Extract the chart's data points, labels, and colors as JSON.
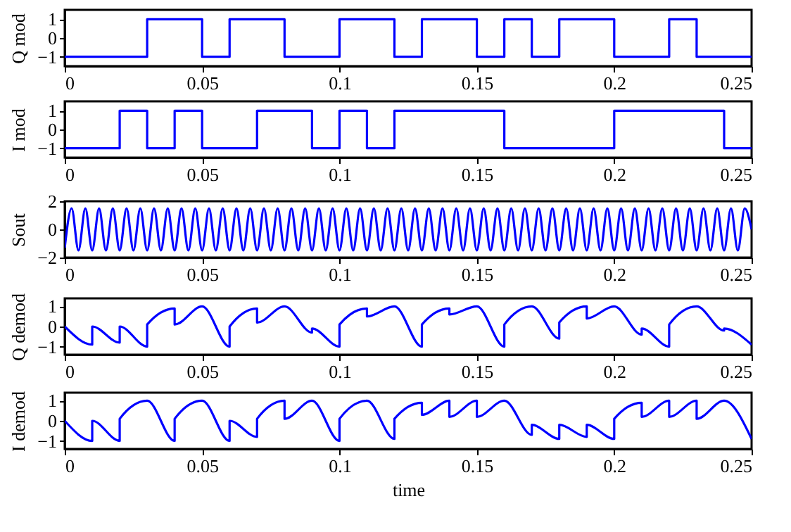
{
  "chart_data": [
    {
      "type": "step",
      "ylabel": "Q mod",
      "color": "#0000ff",
      "xlim": [
        0,
        0.25
      ],
      "xticks": [
        0,
        0.05,
        0.1,
        0.15,
        0.2,
        0.25
      ],
      "ylim": [
        -1.5,
        1.5
      ],
      "yticks": [
        -1,
        0,
        1
      ],
      "x": [
        0,
        0.01,
        0.02,
        0.03,
        0.04,
        0.05,
        0.06,
        0.07,
        0.08,
        0.09,
        0.1,
        0.11,
        0.12,
        0.13,
        0.14,
        0.15,
        0.16,
        0.17,
        0.18,
        0.19,
        0.2,
        0.21,
        0.22,
        0.23,
        0.24,
        0.25
      ],
      "values": [
        -1,
        -1,
        -1,
        1,
        1,
        -1,
        1,
        1,
        -1,
        -1,
        1,
        1,
        -1,
        1,
        1,
        -1,
        1,
        -1,
        1,
        1,
        -1,
        -1,
        1,
        -1,
        -1,
        -1
      ]
    },
    {
      "type": "step",
      "ylabel": "I mod",
      "color": "#0000ff",
      "xlim": [
        0,
        0.25
      ],
      "xticks": [
        0,
        0.05,
        0.1,
        0.15,
        0.2,
        0.25
      ],
      "ylim": [
        -1.5,
        1.5
      ],
      "yticks": [
        -1,
        0,
        1
      ],
      "x": [
        0,
        0.01,
        0.02,
        0.03,
        0.04,
        0.05,
        0.06,
        0.07,
        0.08,
        0.09,
        0.1,
        0.11,
        0.12,
        0.13,
        0.14,
        0.15,
        0.16,
        0.17,
        0.18,
        0.19,
        0.2,
        0.21,
        0.22,
        0.23,
        0.24,
        0.25
      ],
      "values": [
        -1,
        -1,
        1,
        -1,
        1,
        -1,
        -1,
        1,
        1,
        -1,
        1,
        -1,
        1,
        1,
        1,
        1,
        -1,
        -1,
        -1,
        -1,
        1,
        1,
        1,
        1,
        -1,
        -1
      ]
    },
    {
      "type": "line",
      "ylabel": "Sout",
      "color": "#0000ff",
      "xlim": [
        0,
        0.25
      ],
      "xticks": [
        0,
        0.05,
        0.1,
        0.15,
        0.2,
        0.25
      ],
      "ylim": [
        -2,
        2
      ],
      "yticks": [
        -2,
        0,
        2
      ],
      "x": [
        0,
        0.0025,
        0.005,
        0.0075,
        0.01,
        0.0125,
        0.015,
        0.0175,
        0.02,
        0.0225,
        0.025,
        0.0275,
        0.03,
        0.0325,
        0.035,
        0.0375,
        0.04,
        0.0425,
        0.045,
        0.0475,
        0.05,
        0.0525,
        0.055,
        0.0575,
        0.06,
        0.0625,
        0.065,
        0.0675,
        0.07,
        0.0725,
        0.075,
        0.0775,
        0.08,
        0.0825,
        0.085,
        0.0875,
        0.09,
        0.0925,
        0.095,
        0.0975,
        0.1,
        0.1025,
        0.105,
        0.1075,
        0.11,
        0.1125,
        0.115,
        0.1175,
        0.12,
        0.1225,
        0.125,
        0.1275,
        0.13,
        0.1325,
        0.135,
        0.1375,
        0.14,
        0.1425,
        0.145,
        0.1475,
        0.15,
        0.1525,
        0.155,
        0.1575,
        0.16,
        0.1625,
        0.165,
        0.1675,
        0.17,
        0.1725,
        0.175,
        0.1775,
        0.18,
        0.1825,
        0.185,
        0.1875,
        0.19,
        0.1925,
        0.195,
        0.1975,
        0.2,
        0.2025,
        0.205,
        0.2075,
        0.21,
        0.2125,
        0.215,
        0.2175,
        0.22,
        0.2225,
        0.225,
        0.2275,
        0.23,
        0.2325,
        0.235,
        0.2375,
        0.24,
        0.2425,
        0.245,
        0.2475,
        0.25
      ],
      "values": [
        -1.3,
        1.5,
        -1.5,
        1.5,
        -1.5,
        1.5,
        -1.5,
        1.5,
        -1.5,
        1.5,
        -1.5,
        1.5,
        -1.5,
        1.5,
        -1.5,
        1.5,
        -1.5,
        1.5,
        -1.5,
        1.5,
        -1.5,
        1.5,
        -1.5,
        1.5,
        -1.5,
        1.5,
        -1.5,
        1.5,
        -1.5,
        1.5,
        -1.5,
        1.5,
        -1.5,
        1.5,
        -1.5,
        1.5,
        -1.5,
        1.5,
        -1.5,
        1.5,
        -1.5,
        1.5,
        -1.5,
        1.5,
        -1.5,
        1.5,
        -1.5,
        1.5,
        -1.5,
        1.5,
        -1.5,
        1.5,
        -1.5,
        1.5,
        -1.5,
        1.5,
        -1.5,
        1.5,
        -1.5,
        1.5,
        -1.5,
        1.5,
        -1.5,
        1.5,
        -1.5,
        1.5,
        -1.5,
        1.5,
        -1.5,
        1.5,
        -1.5,
        1.5,
        -1.5,
        1.5,
        -1.5,
        1.5,
        -1.5,
        1.5,
        -1.5,
        1.5,
        -1.5,
        1.5,
        -1.5,
        1.5,
        -1.5,
        1.5,
        -1.5,
        1.5,
        -1.5,
        1.5,
        -1.5,
        1.5,
        -1.5,
        1.5,
        -1.5,
        1.5,
        -1.5,
        1.5,
        -1.5,
        1.5,
        0
      ]
    },
    {
      "type": "line",
      "ylabel": "Q demod",
      "color": "#0000ff",
      "xlim": [
        0,
        0.25
      ],
      "xticks": [
        0,
        0.05,
        0.1,
        0.15,
        0.2,
        0.25
      ],
      "ylim": [
        -1.4,
        1.4
      ],
      "yticks": [
        -1,
        0,
        1
      ],
      "x": [
        0,
        0.01,
        0.01,
        0.02,
        0.02,
        0.03,
        0.03,
        0.04,
        0.04,
        0.05,
        0.06,
        0.06,
        0.07,
        0.07,
        0.08,
        0.09,
        0.09,
        0.1,
        0.1,
        0.11,
        0.11,
        0.12,
        0.13,
        0.13,
        0.14,
        0.14,
        0.15,
        0.16,
        0.16,
        0.17,
        0.18,
        0.18,
        0.19,
        0.19,
        0.2,
        0.21,
        0.21,
        0.22,
        0.22,
        0.23,
        0.24,
        0.24,
        0.25
      ],
      "values": [
        0,
        -0.9,
        0,
        -0.8,
        0,
        -1,
        0.1,
        0.9,
        0.1,
        1,
        -1,
        0,
        0.9,
        0.2,
        1,
        -0.3,
        -0.1,
        -1,
        0.1,
        0.9,
        0.5,
        1,
        -1,
        0.1,
        0.9,
        0.6,
        1,
        -1,
        0.1,
        1,
        -0.6,
        0.2,
        1,
        0.4,
        1,
        -0.4,
        -0.1,
        -1,
        0.1,
        1,
        -0.2,
        -0.1,
        -0.9
      ]
    },
    {
      "type": "line",
      "ylabel": "I demod",
      "xlabel": "time",
      "color": "#0000ff",
      "xlim": [
        0,
        0.25
      ],
      "xticks": [
        0,
        0.05,
        0.1,
        0.15,
        0.2,
        0.25
      ],
      "ylim": [
        -1.4,
        1.4
      ],
      "yticks": [
        -1,
        0,
        1
      ],
      "x": [
        0,
        0.01,
        0.01,
        0.02,
        0.02,
        0.03,
        0.04,
        0.04,
        0.05,
        0.06,
        0.06,
        0.07,
        0.07,
        0.08,
        0.08,
        0.09,
        0.1,
        0.1,
        0.11,
        0.12,
        0.12,
        0.13,
        0.13,
        0.14,
        0.14,
        0.15,
        0.15,
        0.16,
        0.17,
        0.17,
        0.18,
        0.18,
        0.19,
        0.19,
        0.2,
        0.2,
        0.21,
        0.21,
        0.22,
        0.22,
        0.23,
        0.23,
        0.24,
        0.25
      ],
      "values": [
        0,
        -1,
        0,
        -1,
        0.1,
        1,
        -1,
        0.1,
        1,
        -1,
        0,
        -0.8,
        0.1,
        1,
        0.1,
        1,
        -1,
        0.1,
        1,
        -0.9,
        0.1,
        0.9,
        0.3,
        1,
        0.2,
        1,
        0.2,
        1,
        -0.7,
        -0.2,
        -0.9,
        -0.2,
        -0.8,
        -0.2,
        -0.9,
        0.1,
        0.9,
        0.2,
        1,
        0.2,
        1,
        0.1,
        1,
        -0.9
      ]
    }
  ]
}
